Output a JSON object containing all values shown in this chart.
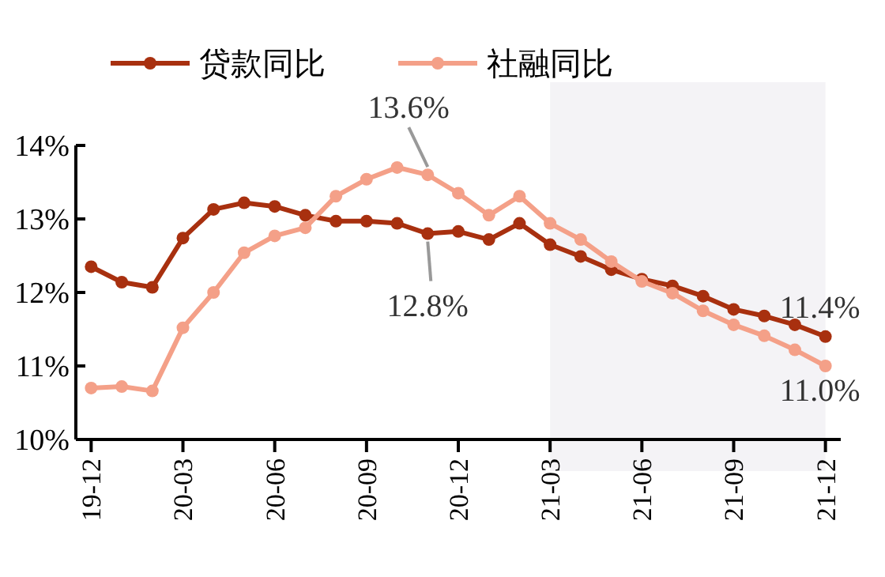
{
  "chart_data": {
    "type": "line",
    "categories": [
      "19-12",
      null,
      null,
      "20-03",
      null,
      null,
      "20-06",
      null,
      null,
      "20-09",
      null,
      null,
      "20-12",
      null,
      null,
      "21-03",
      null,
      null,
      "21-06",
      null,
      null,
      "21-09",
      null,
      null,
      "21-12"
    ],
    "series": [
      {
        "name": "贷款同比",
        "color": "#a8300f",
        "values": [
          12.35,
          12.14,
          12.07,
          12.74,
          13.13,
          13.22,
          13.17,
          13.05,
          12.97,
          12.97,
          12.94,
          12.8,
          12.83,
          12.72,
          12.94,
          12.65,
          12.49,
          12.31,
          12.18,
          12.09,
          11.95,
          11.77,
          11.68,
          11.56,
          11.4
        ]
      },
      {
        "name": "社融同比",
        "color": "#f4a088",
        "values": [
          10.7,
          10.72,
          10.66,
          11.52,
          12.0,
          12.54,
          12.77,
          12.88,
          13.31,
          13.54,
          13.7,
          13.6,
          13.35,
          13.05,
          13.31,
          12.94,
          12.72,
          12.42,
          12.15,
          11.99,
          11.75,
          11.56,
          11.41,
          11.22,
          11.0
        ]
      }
    ],
    "ylim": [
      10,
      14
    ],
    "yticks": [
      {
        "value": 10,
        "label": "10%"
      },
      {
        "value": 11,
        "label": "11%"
      },
      {
        "value": 12,
        "label": "12%"
      },
      {
        "value": 13,
        "label": "13%"
      },
      {
        "value": 14,
        "label": "14%"
      }
    ],
    "bands": [
      {
        "axis": "x",
        "from": "21-03",
        "to": "21-12",
        "color": "#f4f3f6"
      }
    ],
    "annotations": [
      {
        "text": "13.6%",
        "y": 13.6
      },
      {
        "text": "12.8%",
        "y": 12.8
      },
      {
        "text": "11.4%",
        "x": "21-12",
        "y": 11.4
      },
      {
        "text": "11.0%",
        "x": "21-12",
        "y": 11.0
      }
    ],
    "legend": "top left",
    "marker": "circle",
    "line_style": "solid",
    "grid": false
  }
}
